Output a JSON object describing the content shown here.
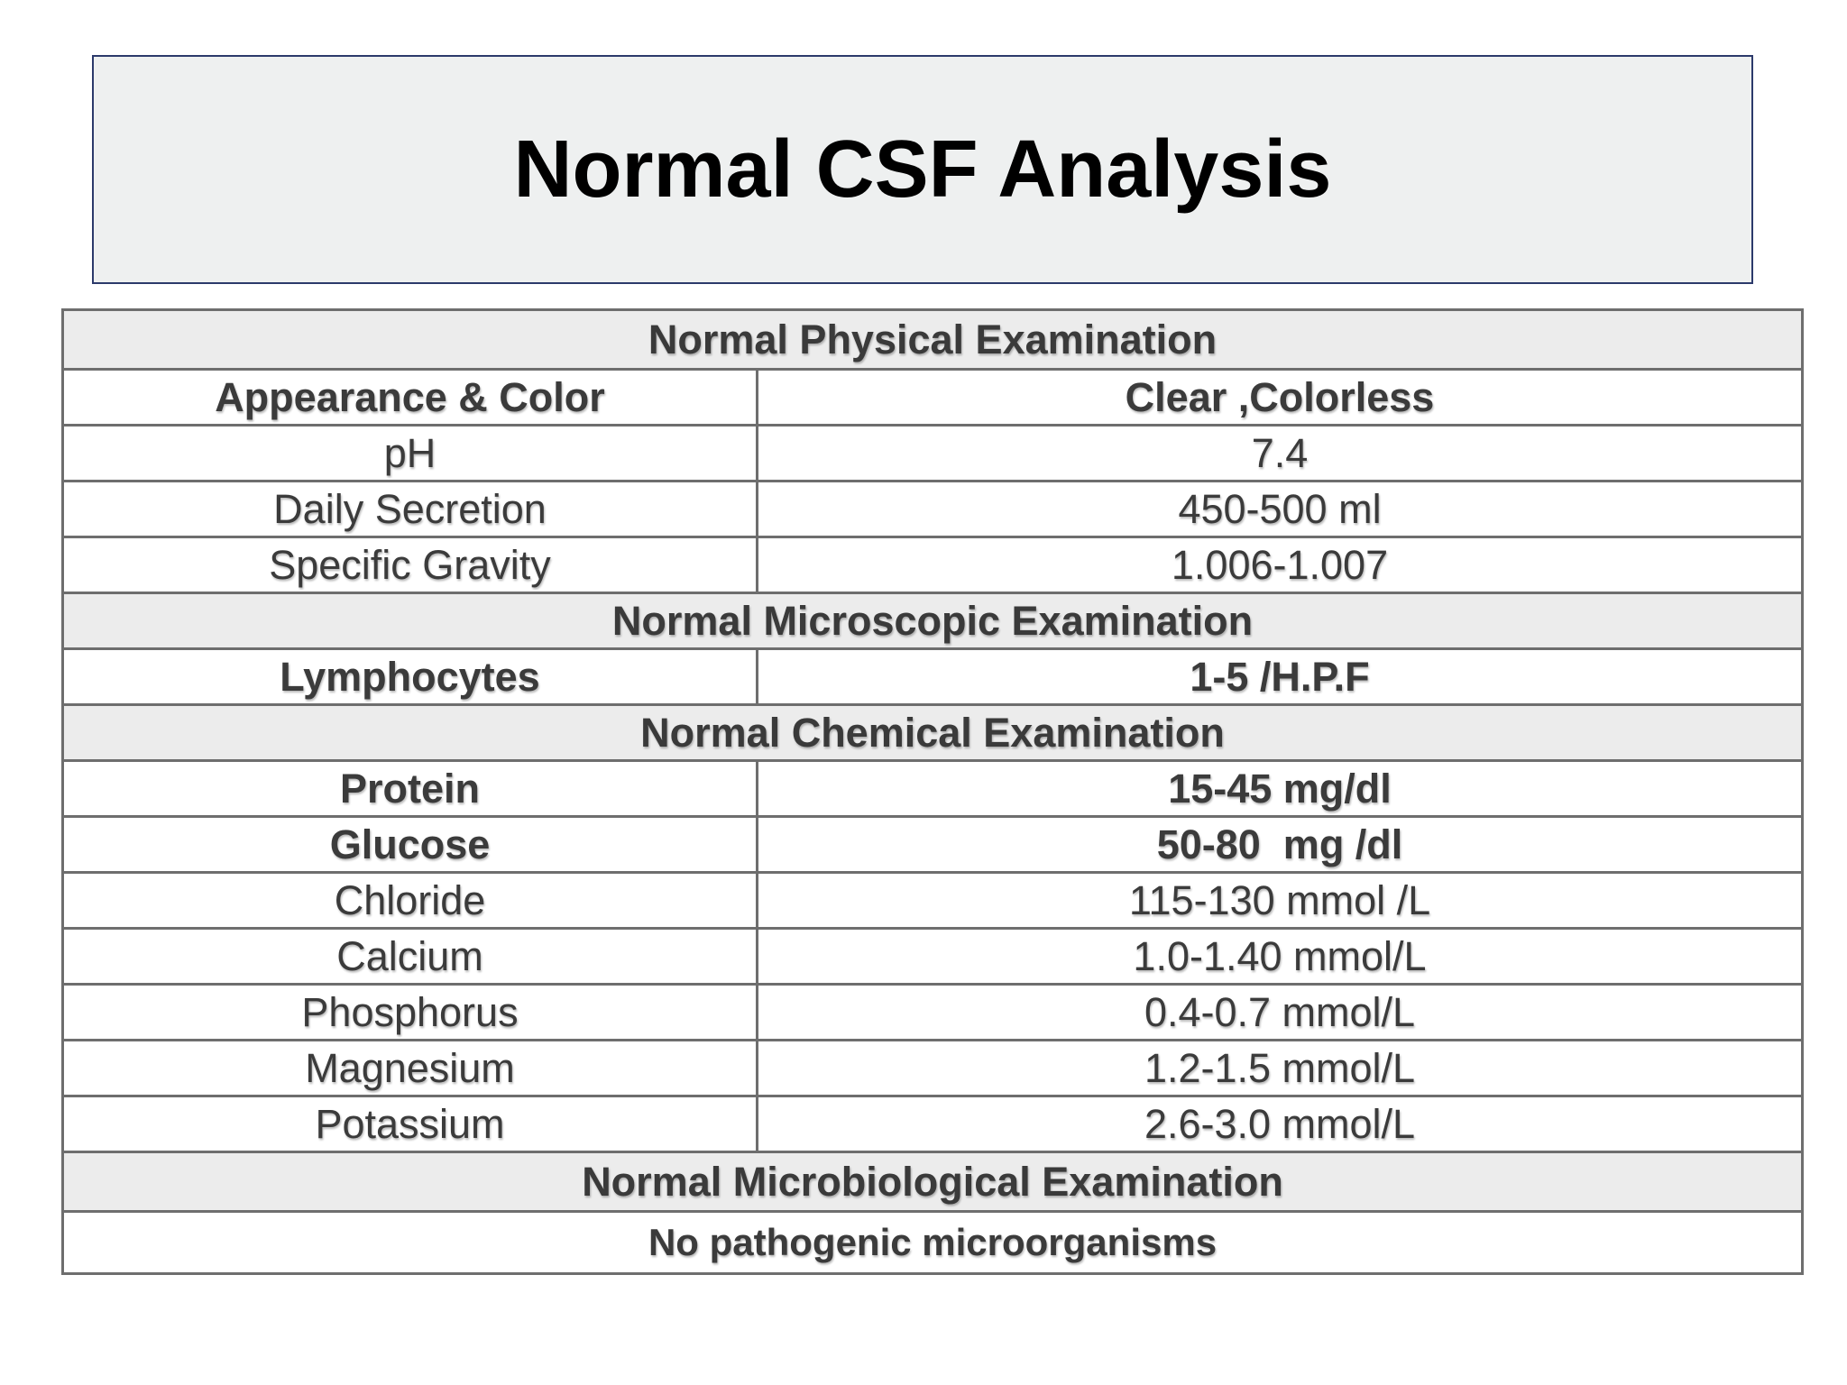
{
  "title": "Normal CSF Analysis",
  "table": {
    "sections": [
      {
        "heading": "Normal Physical Examination",
        "rows": [
          {
            "label": "Appearance & Color",
            "value": "Clear ,Colorless",
            "bold": true
          },
          {
            "label": "pH",
            "value": "7.4",
            "bold": false
          },
          {
            "label": "Daily Secretion",
            "value": "450-500 ml",
            "bold": false
          },
          {
            "label": "Specific Gravity",
            "value": "1.006-1.007",
            "bold": false
          }
        ]
      },
      {
        "heading": "Normal Microscopic Examination",
        "rows": [
          {
            "label": "Lymphocytes",
            "value": "1-5 /H.P.F",
            "bold": true
          }
        ]
      },
      {
        "heading": "Normal Chemical Examination",
        "rows": [
          {
            "label": "Protein",
            "value": "15-45 mg/dl",
            "bold": true
          },
          {
            "label": "Glucose",
            "value": "50-80  mg /dl",
            "bold": true
          },
          {
            "label": "Chloride",
            "value": "115-130 mmol /L",
            "bold": false
          },
          {
            "label": "Calcium",
            "value": "1.0-1.40 mmol/L",
            "bold": false
          },
          {
            "label": "Phosphorus",
            "value": "0.4-0.7 mmol/L",
            "bold": false
          },
          {
            "label": "Magnesium",
            "value": "1.2-1.5 mmol/L",
            "bold": false
          },
          {
            "label": "Potassium",
            "value": "2.6-3.0 mmol/L",
            "bold": false
          }
        ]
      },
      {
        "heading": "Normal Microbiological Examination",
        "note": "No pathogenic microorganisms"
      }
    ]
  },
  "colors": {
    "title_background": "#eef0f0",
    "title_border": "#2c3a6b",
    "section_background": "#ececec",
    "grid_line": "#6e6e6e",
    "text": "#3b3b3b"
  }
}
